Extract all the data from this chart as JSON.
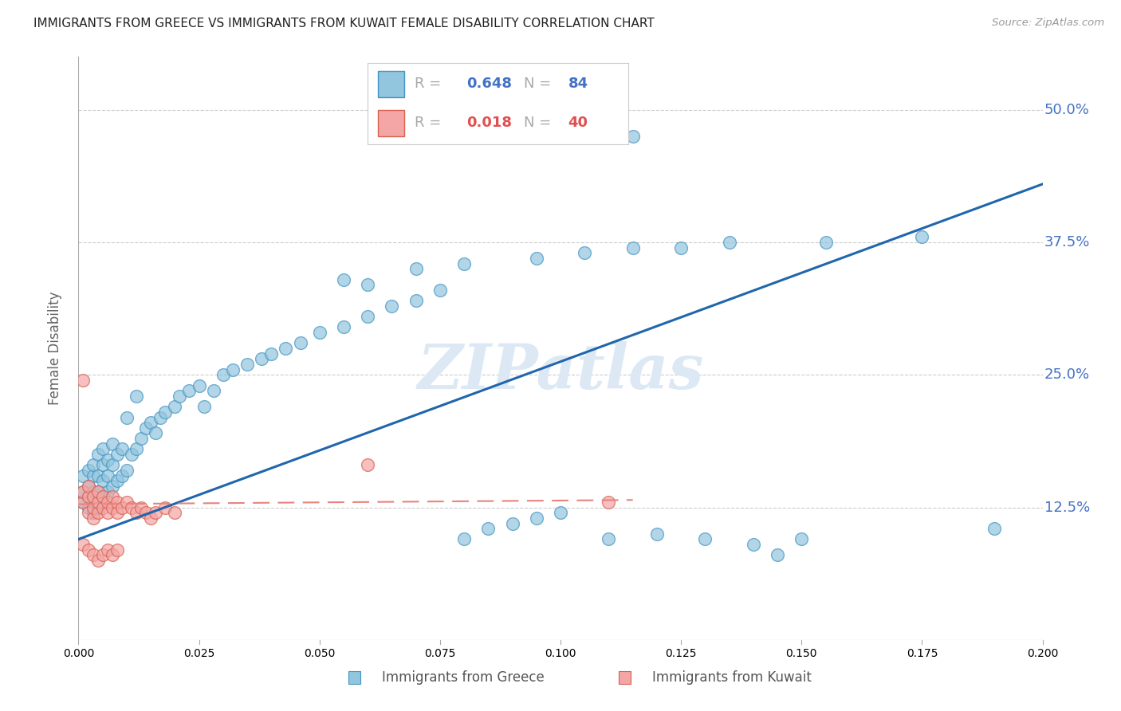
{
  "title": "IMMIGRANTS FROM GREECE VS IMMIGRANTS FROM KUWAIT FEMALE DISABILITY CORRELATION CHART",
  "source": "Source: ZipAtlas.com",
  "ylabel": "Female Disability",
  "ytick_labels": [
    "50.0%",
    "37.5%",
    "25.0%",
    "12.5%"
  ],
  "ytick_values": [
    0.5,
    0.375,
    0.25,
    0.125
  ],
  "xlim": [
    0.0,
    0.2
  ],
  "ylim": [
    0.0,
    0.55
  ],
  "greece_color": "#92c5de",
  "greece_edge_color": "#4393c3",
  "kuwait_color": "#f4a5a5",
  "kuwait_edge_color": "#d6604d",
  "greece_line_color": "#2166ac",
  "kuwait_line_color": "#e8837e",
  "greece_R": 0.648,
  "greece_N": 84,
  "kuwait_R": 0.018,
  "kuwait_N": 40,
  "watermark": "ZIPatlas",
  "watermark_color": "#dce9f5",
  "greece_scatter_x": [
    0.001,
    0.001,
    0.001,
    0.002,
    0.002,
    0.002,
    0.002,
    0.003,
    0.003,
    0.003,
    0.003,
    0.003,
    0.004,
    0.004,
    0.004,
    0.004,
    0.005,
    0.005,
    0.005,
    0.005,
    0.006,
    0.006,
    0.006,
    0.007,
    0.007,
    0.007,
    0.008,
    0.008,
    0.009,
    0.009,
    0.01,
    0.01,
    0.011,
    0.012,
    0.012,
    0.013,
    0.014,
    0.015,
    0.016,
    0.017,
    0.018,
    0.02,
    0.021,
    0.023,
    0.025,
    0.026,
    0.028,
    0.03,
    0.032,
    0.035,
    0.038,
    0.04,
    0.043,
    0.046,
    0.05,
    0.055,
    0.06,
    0.065,
    0.07,
    0.075,
    0.08,
    0.085,
    0.09,
    0.095,
    0.1,
    0.11,
    0.12,
    0.13,
    0.14,
    0.15,
    0.055,
    0.07,
    0.08,
    0.095,
    0.105,
    0.115,
    0.125,
    0.135,
    0.155,
    0.175,
    0.06,
    0.115,
    0.145,
    0.19
  ],
  "greece_scatter_y": [
    0.13,
    0.14,
    0.155,
    0.125,
    0.135,
    0.145,
    0.16,
    0.12,
    0.13,
    0.14,
    0.155,
    0.165,
    0.125,
    0.14,
    0.155,
    0.175,
    0.135,
    0.15,
    0.165,
    0.18,
    0.14,
    0.155,
    0.17,
    0.145,
    0.165,
    0.185,
    0.15,
    0.175,
    0.155,
    0.18,
    0.16,
    0.21,
    0.175,
    0.18,
    0.23,
    0.19,
    0.2,
    0.205,
    0.195,
    0.21,
    0.215,
    0.22,
    0.23,
    0.235,
    0.24,
    0.22,
    0.235,
    0.25,
    0.255,
    0.26,
    0.265,
    0.27,
    0.275,
    0.28,
    0.29,
    0.295,
    0.305,
    0.315,
    0.32,
    0.33,
    0.095,
    0.105,
    0.11,
    0.115,
    0.12,
    0.095,
    0.1,
    0.095,
    0.09,
    0.095,
    0.34,
    0.35,
    0.355,
    0.36,
    0.365,
    0.37,
    0.37,
    0.375,
    0.375,
    0.38,
    0.335,
    0.475,
    0.08,
    0.105
  ],
  "kuwait_scatter_x": [
    0.001,
    0.001,
    0.001,
    0.002,
    0.002,
    0.002,
    0.003,
    0.003,
    0.003,
    0.004,
    0.004,
    0.004,
    0.005,
    0.005,
    0.006,
    0.006,
    0.007,
    0.007,
    0.008,
    0.008,
    0.009,
    0.01,
    0.011,
    0.012,
    0.013,
    0.014,
    0.015,
    0.016,
    0.018,
    0.02,
    0.001,
    0.002,
    0.003,
    0.004,
    0.005,
    0.006,
    0.007,
    0.008,
    0.06,
    0.11
  ],
  "kuwait_scatter_y": [
    0.13,
    0.14,
    0.245,
    0.12,
    0.135,
    0.145,
    0.115,
    0.125,
    0.135,
    0.12,
    0.13,
    0.14,
    0.125,
    0.135,
    0.12,
    0.13,
    0.125,
    0.135,
    0.12,
    0.13,
    0.125,
    0.13,
    0.125,
    0.12,
    0.125,
    0.12,
    0.115,
    0.12,
    0.125,
    0.12,
    0.09,
    0.085,
    0.08,
    0.075,
    0.08,
    0.085,
    0.08,
    0.085,
    0.165,
    0.13
  ],
  "greece_line_x": [
    0.0,
    0.2
  ],
  "greece_line_y": [
    0.095,
    0.43
  ],
  "kuwait_line_x": [
    0.0,
    0.115
  ],
  "kuwait_line_y": [
    0.128,
    0.132
  ]
}
